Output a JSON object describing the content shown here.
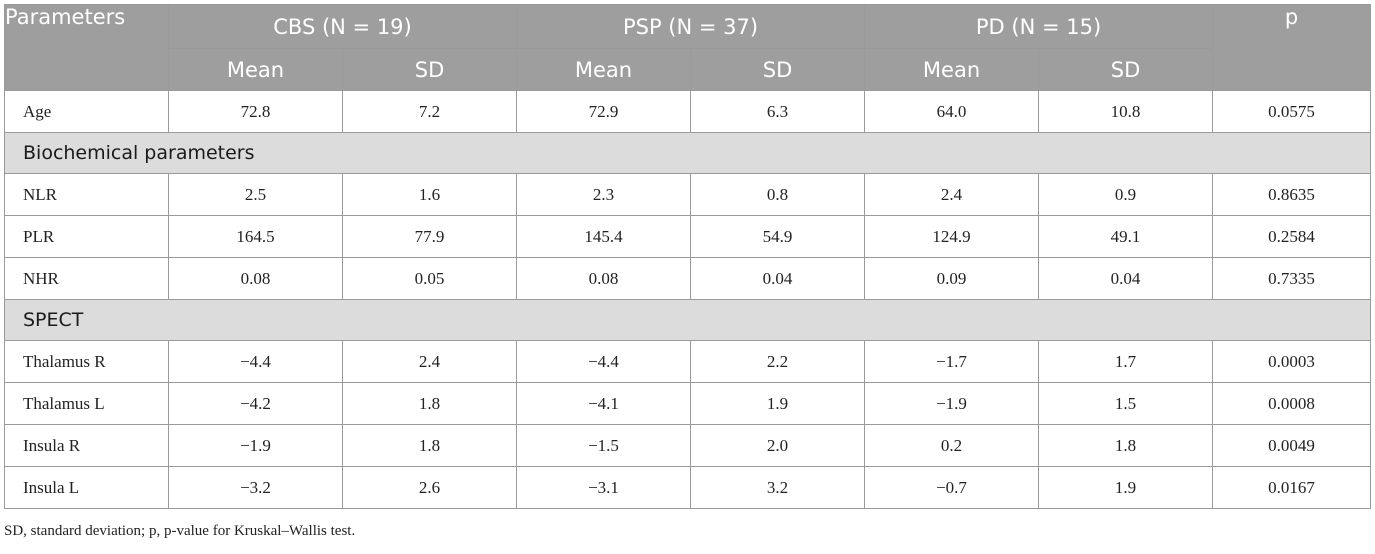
{
  "header": {
    "parameters": "Parameters",
    "groups": [
      "CBS (N = 19)",
      "PSP (N = 37)",
      "PD (N = 15)"
    ],
    "mean": "Mean",
    "sd": "SD",
    "p": "p"
  },
  "rows": [
    {
      "type": "data",
      "label": "Age",
      "values": [
        "72.8",
        "7.2",
        "72.9",
        "6.3",
        "64.0",
        "10.8",
        "0.0575"
      ]
    },
    {
      "type": "section",
      "label": "Biochemical parameters"
    },
    {
      "type": "data",
      "label": "NLR",
      "values": [
        "2.5",
        "1.6",
        "2.3",
        "0.8",
        "2.4",
        "0.9",
        "0.8635"
      ]
    },
    {
      "type": "data",
      "label": "PLR",
      "values": [
        "164.5",
        "77.9",
        "145.4",
        "54.9",
        "124.9",
        "49.1",
        "0.2584"
      ]
    },
    {
      "type": "data",
      "label": "NHR",
      "values": [
        "0.08",
        "0.05",
        "0.08",
        "0.04",
        "0.09",
        "0.04",
        "0.7335"
      ]
    },
    {
      "type": "section",
      "label": "SPECT"
    },
    {
      "type": "data",
      "label": "Thalamus R",
      "values": [
        "−4.4",
        "2.4",
        "−4.4",
        "2.2",
        "−1.7",
        "1.7",
        "0.0003"
      ]
    },
    {
      "type": "data",
      "label": "Thalamus L",
      "values": [
        "−4.2",
        "1.8",
        "−4.1",
        "1.9",
        "−1.9",
        "1.5",
        "0.0008"
      ]
    },
    {
      "type": "data",
      "label": "Insula R",
      "values": [
        "−1.9",
        "1.8",
        "−1.5",
        "2.0",
        "0.2",
        "1.8",
        "0.0049"
      ]
    },
    {
      "type": "data",
      "label": "Insula L",
      "values": [
        "−3.2",
        "2.6",
        "−3.1",
        "3.2",
        "−0.7",
        "1.9",
        "0.0167"
      ]
    }
  ],
  "footnote": "SD, standard deviation; p, p-value for Kruskal–Wallis test."
}
